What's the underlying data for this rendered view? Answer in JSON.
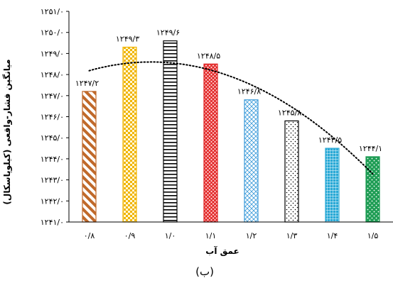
{
  "chart_data": {
    "type": "bar",
    "categories": [
      "۰/۸",
      "۰/۹",
      "۱/۰",
      "۱/۱",
      "۱/۲",
      "۱/۳",
      "۱/۴",
      "۱/۵"
    ],
    "values": [
      1247.2,
      1249.3,
      1249.6,
      1248.5,
      1246.8,
      1245.8,
      1244.5,
      1244.1
    ],
    "data_labels": [
      "۱۲۴۷/۲",
      "۱۲۴۹/۳",
      "۱۲۴۹/۶",
      "۱۲۴۸/۵",
      "۱۲۴۶/۸",
      "۱۲۴۵/۸",
      "۱۲۴۴/۵",
      "۱۲۴۴/۱"
    ],
    "xlabel": "عمق آب",
    "ylabel": "میانگین فشار-واقعی (کیلوپاسکال)",
    "ylim": [
      1241,
      1251
    ],
    "yticks": [
      1241,
      1242,
      1243,
      1244,
      1245,
      1246,
      1247,
      1248,
      1249,
      1250,
      1251
    ],
    "ytick_labels": [
      "۱۲۴۱/۰",
      "۱۲۴۲/۰",
      "۱۲۴۳/۰",
      "۱۲۴۴/۰",
      "۱۲۴۵/۰",
      "۱۲۴۶/۰",
      "۱۲۴۷/۰",
      "۱۲۴۸/۰",
      "۱۲۴۹/۰",
      "۱۲۵۰/۰",
      "۱۲۵۱/۰"
    ],
    "trendline": "polynomial-dotted",
    "grid": false,
    "legend": "none",
    "bar_colors": [
      "#c0692a",
      "#f0b400",
      "#000000",
      "#e02020",
      "#3a9ad9",
      "#000000",
      "#29a9d6",
      "#1f9d55"
    ],
    "bar_patterns": [
      "diagonal-stripes",
      "checker",
      "horizontal-lines",
      "crosshatch",
      "diagonal-crosshatch",
      "dots",
      "grid",
      "dots"
    ]
  },
  "caption": "(ب)"
}
